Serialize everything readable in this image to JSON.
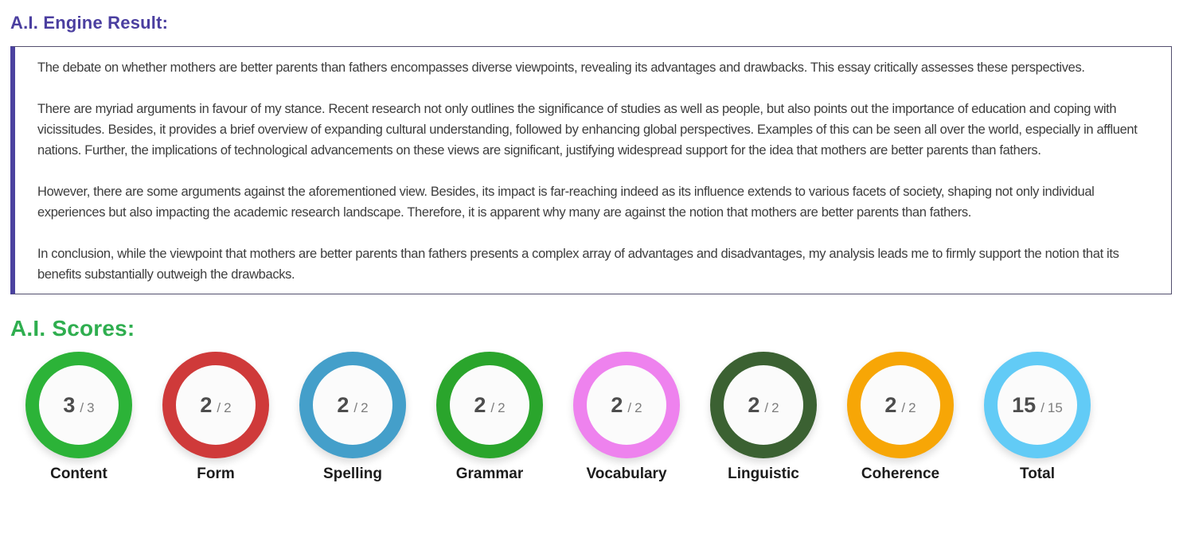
{
  "headings": {
    "engine_result": "A.I. Engine Result:",
    "scores": "A.I. Scores:"
  },
  "essay": {
    "paragraphs": [
      "The debate on whether mothers are better parents than fathers encompasses diverse viewpoints, revealing its advantages and drawbacks. This essay critically assesses these perspectives.",
      "There are myriad arguments in favour of my stance. Recent research not only outlines the significance of studies as well as people, but also points out the importance of education and coping with vicissitudes. Besides, it provides a brief overview of expanding cultural understanding, followed by enhancing global perspectives. Examples of this can be seen all over the world, especially in affluent nations. Further, the implications of technological advancements on these views are significant, justifying widespread support for the idea that mothers are better parents than fathers.",
      "However, there are some arguments against the aforementioned view. Besides, its impact is far-reaching indeed as its influence extends to various facets of society, shaping not only individual experiences but also impacting the academic research landscape. Therefore, it is apparent why many are against the notion that mothers are better parents than fathers.",
      "In conclusion, while the viewpoint that mothers are better parents than fathers presents a complex array of advantages and disadvantages, my analysis leads me to firmly support the notion that its benefits substantially outweigh the drawbacks."
    ]
  },
  "scores_separator": "/",
  "scores": [
    {
      "label": "Content",
      "value": "3",
      "max": "3",
      "color": "#2cb338"
    },
    {
      "label": "Form",
      "value": "2",
      "max": "2",
      "color": "#cf3a3a"
    },
    {
      "label": "Spelling",
      "value": "2",
      "max": "2",
      "color": "#449fca"
    },
    {
      "label": "Grammar",
      "value": "2",
      "max": "2",
      "color": "#2aa52c"
    },
    {
      "label": "Vocabulary",
      "value": "2",
      "max": "2",
      "color": "#ee82ee"
    },
    {
      "label": "Linguistic",
      "value": "2",
      "max": "2",
      "color": "#3b6132"
    },
    {
      "label": "Coherence",
      "value": "2",
      "max": "2",
      "color": "#f7a606"
    },
    {
      "label": "Total",
      "value": "15",
      "max": "15",
      "color": "#62cbf6"
    }
  ],
  "colors": {
    "engine_heading": "#4b3fa0",
    "scores_heading": "#2fae4f",
    "essay_border": "#534f6e",
    "essay_accent_bar": "#4b429f",
    "body_text": "#3d3d3d",
    "score_value_text": "#4d4d4d",
    "score_max_text": "#7d7d7d"
  }
}
